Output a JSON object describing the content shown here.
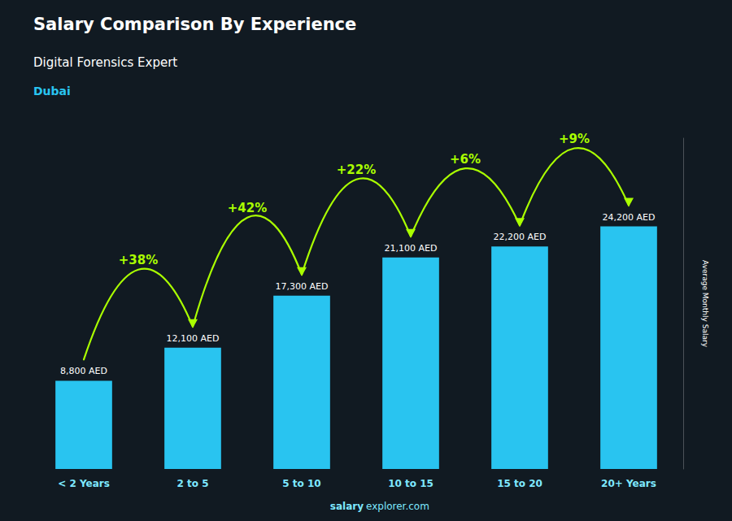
{
  "chart_data": {
    "type": "bar",
    "title": "Salary Comparison By Experience",
    "subtitle": "Digital Forensics Expert",
    "ylabel": "Average Monthly Salary",
    "categories": [
      "< 2 Years",
      "2 to 5",
      "5 to 10",
      "10 to 15",
      "15 to 20",
      "20+ Years"
    ],
    "values": [
      8800,
      12100,
      17300,
      21100,
      22200,
      24200
    ],
    "value_labels": [
      "8,800 AED",
      "12,100 AED",
      "17,300 AED",
      "21,100 AED",
      "22,200 AED",
      "24,200 AED"
    ],
    "data_labels": true,
    "color": "#29c4f0",
    "ylim": [
      0,
      33000
    ],
    "grid": false,
    "tick_labels": "x",
    "annotations": {
      "pct_changes": [
        "+38%",
        "+42%",
        "+22%",
        "+6%",
        "+9%"
      ],
      "city": "Dubai",
      "watermark": [
        "salary",
        "explorer.com"
      ]
    }
  }
}
